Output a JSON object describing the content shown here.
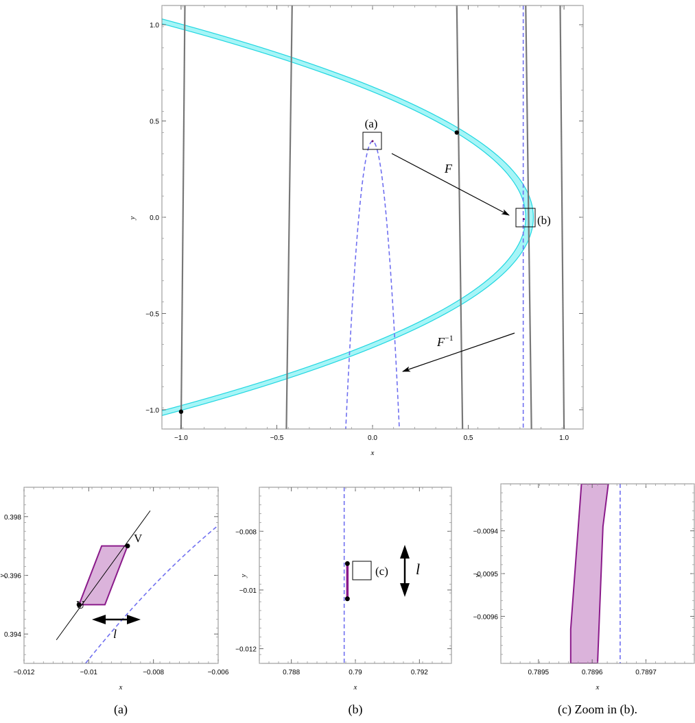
{
  "chart_data": [
    {
      "type": "line",
      "panel": "main",
      "xlabel": "x",
      "ylabel": "y",
      "xlim": [
        -1.1,
        1.1
      ],
      "ylim": [
        -1.1,
        1.1
      ],
      "xticks": [
        -1.0,
        -0.5,
        0.0,
        0.5,
        1.0
      ],
      "yticks": [
        -1.0,
        -0.5,
        0.0,
        0.5,
        1.0
      ],
      "xtick_labels": [
        "−1.0",
        "−0.5",
        "0.0",
        "0.5",
        "1.0"
      ],
      "ytick_labels": [
        "−1.0",
        "−0.5",
        "0.0",
        "0.5",
        "1.0"
      ],
      "grid": false,
      "series": [
        {
          "style": "cyan-band",
          "color": "#00e5ee",
          "vertex_x": 0.8,
          "y_at_x_minus_1_1": [
            1.03,
            -1.03
          ]
        },
        {
          "style": "gray-solid",
          "color": "#777777",
          "x": [
            [
              -1.0,
              -0.98
            ],
            [
              -0.45,
              -0.42
            ],
            [
              0.47,
              0.44
            ],
            [
              0.83,
              0.8
            ],
            [
              1.0,
              0.98
            ]
          ]
        },
        {
          "style": "blue-dashed-vertical",
          "color": "#6f6ff0",
          "x": 0.787
        },
        {
          "style": "blue-dashed-parabola",
          "color": "#6f6ff0",
          "vertex": [
            0.0,
            0.395
          ],
          "x_at_y_minus_1_1": [
            -0.14,
            0.14
          ]
        }
      ],
      "points": [
        [
          0.44,
          0.44
        ],
        [
          -1.0,
          -1.01
        ],
        [
          0.0,
          0.395
        ],
        [
          0.79,
          -0.01
        ]
      ],
      "annotations": {
        "box_a_label": "(a)",
        "box_b_label": "(b)",
        "arrow_f_label": "F",
        "arrow_finv_base": "F",
        "arrow_finv_sup": "−1"
      }
    },
    {
      "type": "line",
      "panel": "a",
      "xlabel": "x",
      "ylabel": "y",
      "xlim": [
        -0.012,
        -0.006
      ],
      "ylim": [
        0.393,
        0.399
      ],
      "xticks": [
        -0.012,
        -0.01,
        -0.008,
        -0.006
      ],
      "yticks": [
        0.394,
        0.396,
        0.398
      ],
      "xtick_labels": [
        "−0.012",
        "−0.01",
        "−0.008",
        "−0.006"
      ],
      "ytick_labels": [
        "0.394",
        "0.396",
        "0.398"
      ],
      "parallelogram": [
        [
          -0.0103,
          0.395
        ],
        [
          -0.0095,
          0.395
        ],
        [
          -0.0088,
          0.397
        ],
        [
          -0.0096,
          0.397
        ]
      ],
      "line_uv": [
        [
          -0.011,
          0.3938
        ],
        [
          -0.0081,
          0.3982
        ]
      ],
      "point_u": [
        -0.0103,
        0.395
      ],
      "point_v": [
        -0.0088,
        0.397
      ],
      "dashed_curve": [
        [
          -0.0101,
          0.393
        ],
        [
          -0.0085,
          0.3952
        ],
        [
          -0.0072,
          0.3966
        ],
        [
          -0.006,
          0.3977
        ]
      ],
      "labels": {
        "u": "U",
        "v": "V",
        "l": "l"
      }
    },
    {
      "type": "line",
      "panel": "b",
      "xlabel": "x",
      "ylabel": "y",
      "xlim": [
        0.787,
        0.793
      ],
      "ylim": [
        -0.0125,
        -0.0065
      ],
      "xticks": [
        0.788,
        0.79,
        0.792
      ],
      "yticks": [
        -0.008,
        -0.01,
        -0.012
      ],
      "xtick_labels": [
        "0.788",
        "0.79",
        "0.792"
      ],
      "ytick_labels": [
        "−0.008",
        "−0.01",
        "−0.012"
      ],
      "dashed_x": 0.78965,
      "segment": [
        [
          0.78975,
          -0.0091
        ],
        [
          0.78975,
          -0.0103
        ]
      ],
      "labels": {
        "c": "(c)",
        "l": "l"
      }
    },
    {
      "type": "area",
      "panel": "c",
      "xlabel": "x",
      "ylabel": "y",
      "xlim": [
        0.78943,
        0.78979
      ],
      "ylim": [
        -0.00971,
        -0.00929
      ],
      "xticks": [
        0.7895,
        0.7896,
        0.7897
      ],
      "yticks": [
        -0.0094,
        -0.0095,
        -0.0096
      ],
      "xtick_labels": [
        "0.7895",
        "0.7896",
        "0.7897"
      ],
      "ytick_labels": [
        "−0.0094",
        "−0.0095",
        "−0.0096"
      ],
      "strip_polygon": [
        [
          0.78958,
          -0.00929
        ],
        [
          0.78963,
          -0.00929
        ],
        [
          0.78962,
          -0.00939
        ],
        [
          0.78961,
          -0.00971
        ],
        [
          0.78956,
          -0.00971
        ],
        [
          0.78956,
          -0.00963
        ]
      ],
      "dashed_x": 0.789652
    }
  ],
  "captions": {
    "a": "(a)",
    "b": "(b)",
    "c": "(c) Zoom in (b)."
  }
}
